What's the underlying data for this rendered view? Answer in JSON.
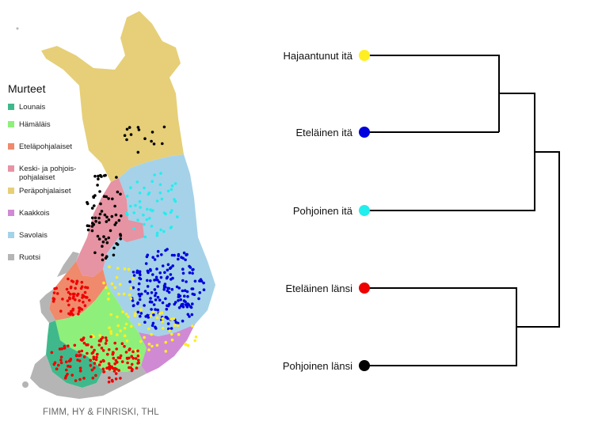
{
  "map": {
    "legend_title": "Murteet",
    "legend": [
      {
        "label": "Lounais",
        "color": "#3fb98b"
      },
      {
        "label": "Hämäläis",
        "color": "#8ef07a"
      },
      {
        "label": "Eteläpohjalaiset",
        "color": "#f08a6c"
      },
      {
        "label": "Keski- ja pohjois-pohjalaiset",
        "color": "#e693a3"
      },
      {
        "label": "Peräpohjalaiset",
        "color": "#e6cf78"
      },
      {
        "label": "Kaakkois",
        "color": "#d08ad3"
      },
      {
        "label": "Savolais",
        "color": "#a5d2e8"
      },
      {
        "label": "Ruotsi",
        "color": "#b5b5b5"
      }
    ],
    "credit": "FIMM, HY & FINRISKI, THL",
    "point_colors": {
      "black": "#000000",
      "cyan": "#22eeee",
      "blue": "#0000dd",
      "yellow": "#ffee22",
      "red": "#ee0000"
    }
  },
  "dendrogram": {
    "leaves": [
      {
        "label": "Hajaantunut itä",
        "color": "#ffee22"
      },
      {
        "label": "Eteläinen itä",
        "color": "#0000dd"
      },
      {
        "label": "Pohjoinen itä",
        "color": "#22eeee"
      },
      {
        "label": "Eteläinen länsi",
        "color": "#ee0000"
      },
      {
        "label": "Pohjoinen länsi",
        "color": "#000000"
      }
    ]
  }
}
